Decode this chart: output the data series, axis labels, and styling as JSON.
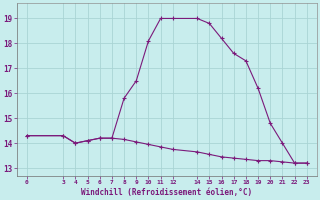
{
  "xlabel": "Windchill (Refroidissement éolien,°C)",
  "background_color": "#c8eded",
  "grid_color": "#aad4d4",
  "line_color": "#7b1a7b",
  "ylim": [
    12.7,
    19.6
  ],
  "xlim": [
    -0.8,
    23.8
  ],
  "yticks": [
    13,
    14,
    15,
    16,
    17,
    18,
    19
  ],
  "xtick_positions": [
    0,
    3,
    4,
    5,
    6,
    7,
    8,
    9,
    10,
    11,
    12,
    14,
    15,
    16,
    17,
    18,
    19,
    20,
    21,
    22,
    23
  ],
  "xtick_labels": [
    "0",
    "3",
    "4",
    "5",
    "6",
    "7",
    "8",
    "9",
    "10",
    "11",
    "12",
    "14",
    "15",
    "16",
    "17",
    "18",
    "19",
    "20",
    "21",
    "22",
    "23"
  ],
  "hours": [
    0,
    3,
    4,
    5,
    6,
    7,
    8,
    9,
    10,
    11,
    12,
    14,
    15,
    16,
    17,
    18,
    19,
    20,
    21,
    22,
    23
  ],
  "temps": [
    14.3,
    14.3,
    14.0,
    14.1,
    14.2,
    14.2,
    15.8,
    16.5,
    18.1,
    19.0,
    19.0,
    19.0,
    18.8,
    18.2,
    17.6,
    17.3,
    16.2,
    14.8,
    14.0,
    13.2,
    13.2
  ],
  "hours2": [
    0,
    3,
    4,
    5,
    6,
    7,
    8,
    9,
    10,
    11,
    12,
    14,
    15,
    16,
    17,
    18,
    19,
    20,
    21,
    22,
    23
  ],
  "temps2": [
    14.3,
    14.3,
    14.0,
    14.1,
    14.2,
    14.2,
    14.15,
    14.05,
    13.95,
    13.85,
    13.75,
    13.65,
    13.55,
    13.45,
    13.4,
    13.35,
    13.3,
    13.3,
    13.25,
    13.2,
    13.2
  ]
}
